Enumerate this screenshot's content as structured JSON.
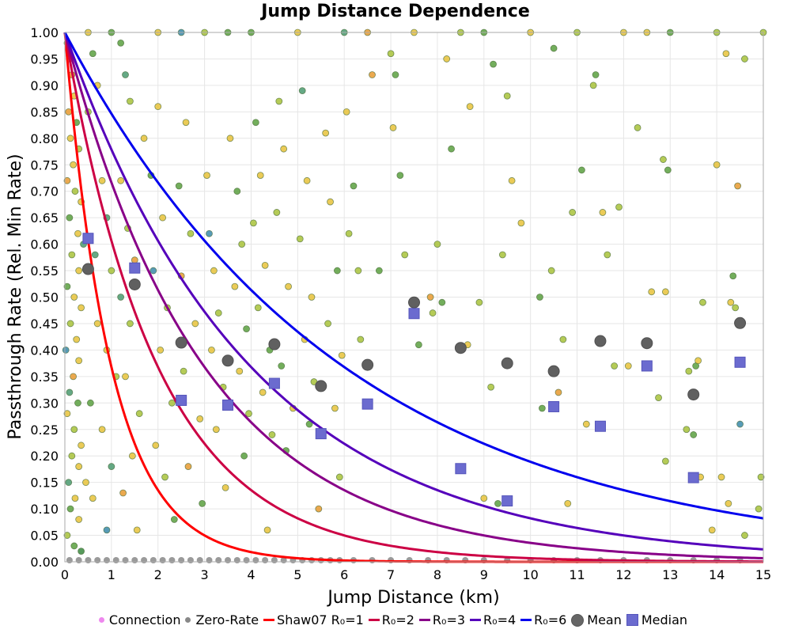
{
  "chart_data": {
    "type": "scatter",
    "title": "Jump Distance Dependence",
    "xlabel": "Jump Distance (km)",
    "ylabel": "Passthrough Rate (Rel. Min Rate)",
    "xlim": [
      0,
      15
    ],
    "ylim": [
      0,
      1
    ],
    "x_ticks": [
      "0",
      "1",
      "2",
      "3",
      "4",
      "5",
      "6",
      "7",
      "8",
      "9",
      "10",
      "11",
      "12",
      "13",
      "14",
      "15"
    ],
    "y_ticks": [
      "0.00",
      "0.05",
      "0.10",
      "0.15",
      "0.20",
      "0.25",
      "0.30",
      "0.35",
      "0.40",
      "0.45",
      "0.50",
      "0.55",
      "0.60",
      "0.65",
      "0.70",
      "0.75",
      "0.80",
      "0.85",
      "0.90",
      "0.95",
      "1.00"
    ],
    "grid": true,
    "legend_position": "bottom",
    "legend": [
      {
        "label": "Connection",
        "kind": "dot",
        "color": "#ee88ee"
      },
      {
        "label": "Zero-Rate",
        "kind": "dot",
        "color": "#888888"
      },
      {
        "label": "Shaw07 R₀=1",
        "kind": "line",
        "color": "#ff0000"
      },
      {
        "label": "R₀=2",
        "kind": "line",
        "color": "#cc0044"
      },
      {
        "label": "R₀=3",
        "kind": "line",
        "color": "#880088"
      },
      {
        "label": "R₀=4",
        "kind": "line",
        "color": "#5500bb"
      },
      {
        "label": "R₀=6",
        "kind": "line",
        "color": "#0000ee"
      },
      {
        "label": "Mean",
        "kind": "circle",
        "color": "#666666"
      },
      {
        "label": "Median",
        "kind": "square",
        "color": "#6b6bcf"
      }
    ],
    "curves": [
      {
        "name": "Shaw07 R₀=1",
        "R0": 1,
        "formula": "exp(-d/R0)",
        "color": "#ff0000"
      },
      {
        "name": "R₀=2",
        "R0": 2,
        "formula": "exp(-d/R0)",
        "color": "#cc0044"
      },
      {
        "name": "R₀=3",
        "R0": 3,
        "formula": "exp(-d/R0)",
        "color": "#880088"
      },
      {
        "name": "R₀=4",
        "R0": 4,
        "formula": "exp(-d/R0)",
        "color": "#5500bb"
      },
      {
        "name": "R₀=6",
        "R0": 6,
        "formula": "exp(-d/R0)",
        "color": "#0000ee"
      }
    ],
    "mean": {
      "x": [
        0.5,
        1.5,
        2.5,
        3.5,
        4.5,
        5.5,
        6.5,
        7.5,
        8.5,
        9.5,
        10.5,
        11.5,
        12.5,
        13.5,
        14.5
      ],
      "y": [
        0.553,
        0.524,
        0.414,
        0.38,
        0.411,
        0.332,
        0.372,
        0.49,
        0.404,
        0.375,
        0.36,
        0.417,
        0.413,
        0.316,
        0.451
      ]
    },
    "median": {
      "x": [
        0.5,
        1.5,
        2.5,
        3.5,
        4.5,
        5.5,
        6.5,
        7.5,
        8.5,
        9.5,
        10.5,
        11.5,
        12.5,
        13.5,
        14.5
      ],
      "y": [
        0.611,
        0.555,
        0.305,
        0.296,
        0.337,
        0.242,
        0.298,
        0.469,
        0.176,
        0.115,
        0.293,
        0.256,
        0.37,
        0.159,
        0.377
      ]
    },
    "connections": [
      [
        0.05,
        0.98,
        "#e8c23a"
      ],
      [
        0.1,
        0.95,
        "#a8c23a"
      ],
      [
        0.15,
        0.92,
        "#e8a030"
      ],
      [
        0.2,
        0.88,
        "#e8c23a"
      ],
      [
        0.08,
        0.85,
        "#e89a30"
      ],
      [
        0.25,
        0.83,
        "#5aa040"
      ],
      [
        0.12,
        0.8,
        "#e8c23a"
      ],
      [
        0.3,
        0.78,
        "#a8c23a"
      ],
      [
        0.18,
        0.75,
        "#e8c23a"
      ],
      [
        0.05,
        0.72,
        "#e89a30"
      ],
      [
        0.22,
        0.7,
        "#a8c23a"
      ],
      [
        0.35,
        0.68,
        "#e8c23a"
      ],
      [
        0.1,
        0.65,
        "#5aa040"
      ],
      [
        0.28,
        0.62,
        "#e8c23a"
      ],
      [
        0.4,
        0.6,
        "#4a9a70"
      ],
      [
        0.15,
        0.58,
        "#a8c23a"
      ],
      [
        0.3,
        0.55,
        "#e8c23a"
      ],
      [
        0.05,
        0.52,
        "#5aa040"
      ],
      [
        0.2,
        0.5,
        "#e8c23a"
      ],
      [
        0.35,
        0.48,
        "#e8c23a"
      ],
      [
        0.12,
        0.45,
        "#a8c23a"
      ],
      [
        0.25,
        0.42,
        "#e8c23a"
      ],
      [
        0.02,
        0.4,
        "#3a8aaa"
      ],
      [
        0.3,
        0.38,
        "#e8c23a"
      ],
      [
        0.18,
        0.35,
        "#e89a30"
      ],
      [
        0.1,
        0.32,
        "#4a9a70"
      ],
      [
        0.28,
        0.3,
        "#5aa040"
      ],
      [
        0.05,
        0.28,
        "#e8c23a"
      ],
      [
        0.2,
        0.25,
        "#a8c23a"
      ],
      [
        0.35,
        0.22,
        "#e8c23a"
      ],
      [
        0.15,
        0.2,
        "#a8c23a"
      ],
      [
        0.3,
        0.18,
        "#e8c23a"
      ],
      [
        0.08,
        0.15,
        "#4a9a70"
      ],
      [
        0.22,
        0.12,
        "#e8c23a"
      ],
      [
        0.12,
        0.1,
        "#5aa040"
      ],
      [
        0.3,
        0.08,
        "#e8c23a"
      ],
      [
        0.05,
        0.05,
        "#a8c23a"
      ],
      [
        0.2,
        0.03,
        "#5aa040"
      ],
      [
        0.35,
        0.02,
        "#3a8a40"
      ],
      [
        0.45,
        0.15,
        "#e8c23a"
      ],
      [
        0.6,
        0.96,
        "#5aa040"
      ],
      [
        0.7,
        0.9,
        "#e8c23a"
      ],
      [
        0.5,
        0.85,
        "#a8c23a"
      ],
      [
        0.8,
        0.72,
        "#e8c23a"
      ],
      [
        0.9,
        0.65,
        "#4a9a70"
      ],
      [
        0.65,
        0.58,
        "#4a9a70"
      ],
      [
        1.0,
        0.55,
        "#a8c23a"
      ],
      [
        0.7,
        0.45,
        "#e8c23a"
      ],
      [
        0.9,
        0.4,
        "#e8c23a"
      ],
      [
        1.1,
        0.35,
        "#a8c23a"
      ],
      [
        0.55,
        0.3,
        "#5aa040"
      ],
      [
        0.8,
        0.25,
        "#e8c23a"
      ],
      [
        1.0,
        0.18,
        "#4a9a70"
      ],
      [
        0.6,
        0.12,
        "#e8c23a"
      ],
      [
        0.9,
        0.06,
        "#3a8aaa"
      ],
      [
        1.2,
        0.98,
        "#5aa040"
      ],
      [
        1.3,
        0.92,
        "#4a9a70"
      ],
      [
        1.4,
        0.87,
        "#a8c23a"
      ],
      [
        1.2,
        0.72,
        "#e8c23a"
      ],
      [
        1.35,
        0.63,
        "#a8c23a"
      ],
      [
        1.5,
        0.57,
        "#e89a30"
      ],
      [
        1.2,
        0.5,
        "#4a9a70"
      ],
      [
        1.4,
        0.45,
        "#a8c23a"
      ],
      [
        1.3,
        0.35,
        "#e8c23a"
      ],
      [
        1.6,
        0.28,
        "#a8c23a"
      ],
      [
        1.45,
        0.2,
        "#e8c23a"
      ],
      [
        1.25,
        0.13,
        "#e89a30"
      ],
      [
        1.55,
        0.06,
        "#e8c23a"
      ],
      [
        1.7,
        0.8,
        "#e8c23a"
      ],
      [
        1.85,
        0.73,
        "#5aa040"
      ],
      [
        2.0,
        0.86,
        "#e8c23a"
      ],
      [
        2.1,
        0.65,
        "#e8c23a"
      ],
      [
        1.9,
        0.55,
        "#3a8aaa"
      ],
      [
        2.2,
        0.48,
        "#a8c23a"
      ],
      [
        2.05,
        0.4,
        "#e8c23a"
      ],
      [
        2.3,
        0.3,
        "#a8c23a"
      ],
      [
        1.95,
        0.22,
        "#e8c23a"
      ],
      [
        2.15,
        0.16,
        "#a8c23a"
      ],
      [
        2.35,
        0.08,
        "#5aa040"
      ],
      [
        2.45,
        0.71,
        "#5aa040"
      ],
      [
        2.6,
        0.83,
        "#e8c23a"
      ],
      [
        2.7,
        0.62,
        "#a8c23a"
      ],
      [
        2.5,
        0.54,
        "#e89a30"
      ],
      [
        2.8,
        0.45,
        "#e8c23a"
      ],
      [
        2.55,
        0.36,
        "#a8c23a"
      ],
      [
        2.9,
        0.27,
        "#e8c23a"
      ],
      [
        2.65,
        0.18,
        "#e89a30"
      ],
      [
        2.95,
        0.11,
        "#5aa040"
      ],
      [
        3.05,
        0.73,
        "#e8c23a"
      ],
      [
        3.1,
        0.62,
        "#3a8aaa"
      ],
      [
        3.2,
        0.55,
        "#e8c23a"
      ],
      [
        3.3,
        0.47,
        "#a8c23a"
      ],
      [
        3.15,
        0.4,
        "#e8c23a"
      ],
      [
        3.4,
        0.33,
        "#a8c23a"
      ],
      [
        3.25,
        0.25,
        "#e8c23a"
      ],
      [
        3.45,
        0.14,
        "#e8c23a"
      ],
      [
        3.55,
        0.8,
        "#e8c23a"
      ],
      [
        3.7,
        0.7,
        "#5aa040"
      ],
      [
        3.8,
        0.6,
        "#a8c23a"
      ],
      [
        3.65,
        0.52,
        "#e8c23a"
      ],
      [
        3.9,
        0.44,
        "#5aa040"
      ],
      [
        3.75,
        0.36,
        "#e8c23a"
      ],
      [
        3.95,
        0.28,
        "#a8c23a"
      ],
      [
        3.85,
        0.2,
        "#5aa040"
      ],
      [
        4.1,
        0.83,
        "#5aa040"
      ],
      [
        4.2,
        0.73,
        "#e8c23a"
      ],
      [
        4.05,
        0.64,
        "#a8c23a"
      ],
      [
        4.3,
        0.56,
        "#e8c23a"
      ],
      [
        4.15,
        0.48,
        "#a8c23a"
      ],
      [
        4.4,
        0.4,
        "#5aa040"
      ],
      [
        4.25,
        0.32,
        "#e8c23a"
      ],
      [
        4.45,
        0.24,
        "#a8c23a"
      ],
      [
        4.35,
        0.06,
        "#e8c23a"
      ],
      [
        4.6,
        0.87,
        "#a8c23a"
      ],
      [
        4.7,
        0.78,
        "#e8c23a"
      ],
      [
        4.55,
        0.66,
        "#a8c23a"
      ],
      [
        4.8,
        0.52,
        "#e8c23a"
      ],
      [
        4.65,
        0.37,
        "#5aa040"
      ],
      [
        4.9,
        0.29,
        "#e8c23a"
      ],
      [
        4.75,
        0.21,
        "#5aa040"
      ],
      [
        5.1,
        0.89,
        "#4a9a70"
      ],
      [
        5.2,
        0.72,
        "#e8c23a"
      ],
      [
        5.05,
        0.61,
        "#a8c23a"
      ],
      [
        5.3,
        0.5,
        "#e8c23a"
      ],
      [
        5.15,
        0.42,
        "#e8c23a"
      ],
      [
        5.35,
        0.34,
        "#a8c23a"
      ],
      [
        5.25,
        0.26,
        "#5aa040"
      ],
      [
        5.45,
        0.1,
        "#e89a30"
      ],
      [
        5.6,
        0.81,
        "#e8c23a"
      ],
      [
        5.7,
        0.68,
        "#e8c23a"
      ],
      [
        5.85,
        0.55,
        "#5aa040"
      ],
      [
        5.65,
        0.45,
        "#a8c23a"
      ],
      [
        5.95,
        0.39,
        "#e8c23a"
      ],
      [
        5.8,
        0.29,
        "#e8c23a"
      ],
      [
        5.9,
        0.16,
        "#a8c23a"
      ],
      [
        6.05,
        0.85,
        "#e8c23a"
      ],
      [
        6.2,
        0.71,
        "#5aa040"
      ],
      [
        6.1,
        0.62,
        "#a8c23a"
      ],
      [
        6.3,
        0.55,
        "#a8c23a"
      ],
      [
        6.35,
        0.42,
        "#a8c23a"
      ],
      [
        6.6,
        0.92,
        "#e89a30"
      ],
      [
        6.75,
        0.55,
        "#5aa040"
      ],
      [
        7.0,
        0.96,
        "#a8c23a"
      ],
      [
        7.1,
        0.92,
        "#5aa040"
      ],
      [
        7.05,
        0.82,
        "#e8c23a"
      ],
      [
        7.2,
        0.73,
        "#5aa040"
      ],
      [
        7.3,
        0.58,
        "#a8c23a"
      ],
      [
        7.85,
        0.5,
        "#e89a30"
      ],
      [
        7.9,
        0.47,
        "#a8c23a"
      ],
      [
        7.6,
        0.41,
        "#5aa040"
      ],
      [
        8.2,
        0.95,
        "#e8c23a"
      ],
      [
        8.3,
        0.78,
        "#5aa040"
      ],
      [
        8.0,
        0.6,
        "#a8c23a"
      ],
      [
        8.65,
        0.41,
        "#e8c23a"
      ],
      [
        8.1,
        0.49,
        "#5aa040"
      ],
      [
        8.9,
        0.49,
        "#a8c23a"
      ],
      [
        8.7,
        0.86,
        "#e8c23a"
      ],
      [
        9.2,
        0.94,
        "#5aa040"
      ],
      [
        9.5,
        0.88,
        "#a8c23a"
      ],
      [
        9.6,
        0.72,
        "#e8c23a"
      ],
      [
        9.8,
        0.64,
        "#e8c23a"
      ],
      [
        9.4,
        0.58,
        "#a8c23a"
      ],
      [
        9.15,
        0.33,
        "#a8c23a"
      ],
      [
        9.0,
        0.12,
        "#e8c23a"
      ],
      [
        10.2,
        0.5,
        "#5aa040"
      ],
      [
        10.25,
        0.29,
        "#5aa040"
      ],
      [
        10.45,
        0.55,
        "#a8c23a"
      ],
      [
        10.7,
        0.42,
        "#a8c23a"
      ],
      [
        10.6,
        0.32,
        "#e89a30"
      ],
      [
        10.8,
        0.11,
        "#e8c23a"
      ],
      [
        10.5,
        0.97,
        "#5aa040"
      ],
      [
        10.9,
        0.66,
        "#a8c23a"
      ],
      [
        11.1,
        0.74,
        "#5aa040"
      ],
      [
        11.2,
        0.26,
        "#e8c23a"
      ],
      [
        11.4,
        0.92,
        "#5aa040"
      ],
      [
        11.35,
        0.9,
        "#a8c23a"
      ],
      [
        11.55,
        0.66,
        "#e8c23a"
      ],
      [
        11.65,
        0.58,
        "#a8c23a"
      ],
      [
        11.9,
        0.67,
        "#a8c23a"
      ],
      [
        12.3,
        0.82,
        "#a8c23a"
      ],
      [
        12.1,
        0.37,
        "#e8c23a"
      ],
      [
        12.6,
        0.51,
        "#e8c23a"
      ],
      [
        12.75,
        0.31,
        "#a8c23a"
      ],
      [
        12.85,
        0.76,
        "#a8c23a"
      ],
      [
        12.95,
        0.74,
        "#5aa040"
      ],
      [
        12.9,
        0.51,
        "#e8c23a"
      ],
      [
        12.9,
        0.19,
        "#a8c23a"
      ],
      [
        13.4,
        0.36,
        "#a8c23a"
      ],
      [
        13.55,
        0.37,
        "#5aa040"
      ],
      [
        13.6,
        0.38,
        "#e8c23a"
      ],
      [
        13.7,
        0.49,
        "#a8c23a"
      ],
      [
        13.5,
        0.24,
        "#5aa040"
      ],
      [
        13.65,
        0.16,
        "#e8c23a"
      ],
      [
        13.35,
        0.25,
        "#a8c23a"
      ],
      [
        14.0,
        0.75,
        "#e8c23a"
      ],
      [
        14.2,
        0.96,
        "#e8c23a"
      ],
      [
        14.35,
        0.54,
        "#5aa040"
      ],
      [
        14.3,
        0.49,
        "#e8c23a"
      ],
      [
        14.45,
        0.71,
        "#e89a30"
      ],
      [
        14.5,
        0.26,
        "#3a8aaa"
      ],
      [
        14.4,
        0.48,
        "#a8c23a"
      ],
      [
        14.6,
        0.95,
        "#a8c23a"
      ],
      [
        14.25,
        0.11,
        "#e8c23a"
      ],
      [
        14.9,
        0.1,
        "#a8c23a"
      ],
      [
        14.95,
        0.16,
        "#a8c23a"
      ],
      [
        13.9,
        0.06,
        "#e8c23a"
      ],
      [
        14.6,
        0.05,
        "#a8c23a"
      ],
      [
        14.1,
        0.16,
        "#e8c23a"
      ],
      [
        11.8,
        0.37,
        "#a8c23a"
      ],
      [
        9.3,
        0.11,
        "#5aa040"
      ],
      [
        7.5,
        1.0,
        "#e8c23a"
      ],
      [
        8.5,
        1.0,
        "#a8c23a"
      ],
      [
        9.0,
        1.0,
        "#5aa040"
      ],
      [
        10.0,
        1.0,
        "#e8c23a"
      ],
      [
        11.0,
        1.0,
        "#a8c23a"
      ],
      [
        12.0,
        1.0,
        "#e8c23a"
      ],
      [
        13.0,
        1.0,
        "#5aa040"
      ],
      [
        14.0,
        1.0,
        "#a8c23a"
      ],
      [
        15.0,
        1.0,
        "#a8c23a"
      ],
      [
        6.0,
        1.0,
        "#4a9a70"
      ],
      [
        5.0,
        1.0,
        "#e8c23a"
      ],
      [
        4.0,
        1.0,
        "#5aa040"
      ],
      [
        3.0,
        1.0,
        "#a8c23a"
      ],
      [
        2.0,
        1.0,
        "#e8c23a"
      ],
      [
        1.0,
        1.0,
        "#5aa040"
      ],
      [
        0.5,
        1.0,
        "#e8c23a"
      ],
      [
        2.5,
        1.0,
        "#3a8aaa"
      ],
      [
        3.5,
        1.0,
        "#5aa040"
      ],
      [
        6.5,
        1.0,
        "#e89a30"
      ],
      [
        12.5,
        1.0,
        "#e8c23a"
      ]
    ],
    "zero_rate_x": [
      0.1,
      0.3,
      0.5,
      0.7,
      0.9,
      1.1,
      1.3,
      1.5,
      1.7,
      1.9,
      2.1,
      2.3,
      2.5,
      2.7,
      2.9,
      3.1,
      3.3,
      3.5,
      3.7,
      3.9,
      4.1,
      4.3,
      4.5,
      4.7,
      4.9,
      5.1,
      5.3,
      5.5,
      5.7,
      5.9,
      6.2,
      6.6,
      7.0,
      7.4,
      7.8,
      8.2,
      8.6,
      9.0,
      9.5,
      10.0,
      10.5,
      11.0,
      11.5,
      12.0,
      12.5,
      13.0,
      13.5,
      14.0,
      14.5
    ]
  }
}
